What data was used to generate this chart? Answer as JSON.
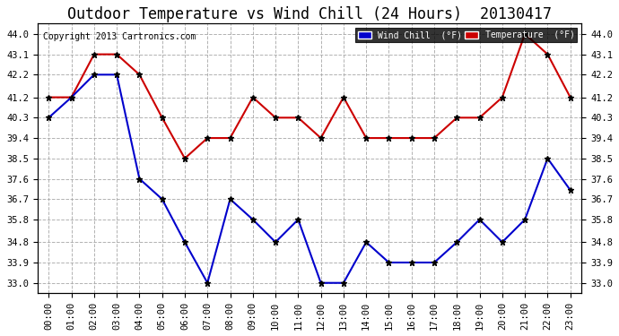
{
  "title": "Outdoor Temperature vs Wind Chill (24 Hours)  20130417",
  "copyright": "Copyright 2013 Cartronics.com",
  "x_labels": [
    "00:00",
    "01:00",
    "02:00",
    "03:00",
    "04:00",
    "05:00",
    "06:00",
    "07:00",
    "08:00",
    "09:00",
    "10:00",
    "11:00",
    "12:00",
    "13:00",
    "14:00",
    "15:00",
    "16:00",
    "17:00",
    "18:00",
    "19:00",
    "20:00",
    "21:00",
    "22:00",
    "23:00"
  ],
  "ylim": [
    32.55,
    44.45
  ],
  "yticks": [
    33.0,
    33.9,
    34.8,
    35.8,
    36.7,
    37.6,
    38.5,
    39.4,
    40.3,
    41.2,
    42.2,
    43.1,
    44.0
  ],
  "temperature": [
    41.2,
    41.2,
    43.1,
    43.1,
    42.2,
    40.3,
    38.5,
    39.4,
    39.4,
    41.2,
    40.3,
    40.3,
    39.4,
    41.2,
    39.4,
    39.4,
    39.4,
    39.4,
    40.3,
    40.3,
    41.2,
    44.0,
    43.1,
    41.2
  ],
  "wind_chill": [
    40.3,
    41.2,
    42.2,
    42.2,
    37.6,
    36.7,
    34.8,
    33.0,
    36.7,
    35.8,
    34.8,
    35.8,
    33.0,
    33.0,
    34.8,
    33.9,
    33.9,
    33.9,
    34.8,
    35.8,
    34.8,
    35.8,
    38.5,
    37.1
  ],
  "temp_color": "#cc0000",
  "wind_color": "#0000cc",
  "background_color": "#ffffff",
  "grid_color": "#aaaaaa",
  "title_fontsize": 12,
  "legend_wind_label": "Wind Chill  (°F)",
  "legend_temp_label": "Temperature  (°F)"
}
